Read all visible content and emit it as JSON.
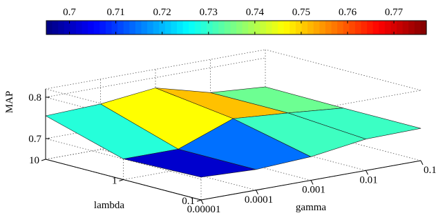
{
  "chart_data": {
    "type": "surface",
    "xlabel": "gamma",
    "ylabel": "lambda",
    "zlabel": "MAP",
    "x_ticks": [
      "0.00001",
      "0.0001",
      "0.001",
      "0.01",
      "0.1"
    ],
    "y_ticks": [
      "0.1",
      "1",
      "10"
    ],
    "z_ticks": [
      "0.7",
      "0.8"
    ],
    "zlim": [
      0.65,
      0.82
    ],
    "grid": true,
    "colorbar": {
      "orientation": "horizontal",
      "position": "top",
      "colormap": "jet",
      "range": [
        0.695,
        0.777
      ],
      "tick_labels": [
        "0.7",
        "0.71",
        "0.72",
        "0.73",
        "0.74",
        "0.75",
        "0.76",
        "0.77"
      ]
    },
    "gamma": [
      1e-05,
      0.0001,
      0.001,
      0.01,
      0.1
    ],
    "lambda": [
      0.1,
      1,
      10
    ],
    "map_values": [
      [
        0.705,
        0.7,
        0.707,
        0.726,
        0.728
      ],
      [
        0.7,
        0.7,
        0.75,
        0.74,
        0.728
      ],
      [
        0.755,
        0.76,
        0.775,
        0.74,
        0.73
      ]
    ]
  }
}
